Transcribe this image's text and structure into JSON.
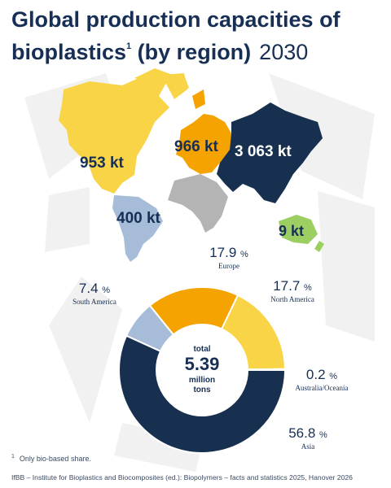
{
  "title": {
    "main": "Global production capacities of bioplastics",
    "sup": "1",
    "tail": " (by region)",
    "year": "2030"
  },
  "colors": {
    "asia": "#17304f",
    "europe": "#f5a300",
    "north_america": "#f8d446",
    "south_america": "#a6bcd9",
    "australia": "#9ccf62",
    "africa": "#b4b4b4",
    "background_shape": "#f1f1f1"
  },
  "chart_data": {
    "type": "pie",
    "donut": true,
    "total_label": "total",
    "total_value": "5.39",
    "total_unit_1": "million",
    "total_unit_2": "tons",
    "slices": [
      {
        "name": "Asia",
        "value": 56.8,
        "display": "56.8",
        "color": "#17304f"
      },
      {
        "name": "South America",
        "value": 7.4,
        "display": "7.4",
        "color": "#a6bcd9"
      },
      {
        "name": "Europe",
        "value": 17.9,
        "display": "17.9",
        "color": "#f5a300"
      },
      {
        "name": "North America",
        "value": 17.7,
        "display": "17.7",
        "color": "#f8d446"
      },
      {
        "name": "Australia/Oceania",
        "value": 0.2,
        "display": "0.2",
        "color": "#9ccf62"
      }
    ],
    "unit": "%"
  },
  "map_labels": {
    "north_america": "953 kt",
    "europe": "966 kt",
    "asia": "3 063 kt",
    "south_america": "400 kt",
    "australia": "9 kt"
  },
  "footnote": {
    "mark": "1",
    "text": "Only bio-based share."
  },
  "source": "IfBB – Institute for Bioplastics and Biocomposites (ed.): Biopolymers – facts and statistics 2025, Hanover 2026"
}
